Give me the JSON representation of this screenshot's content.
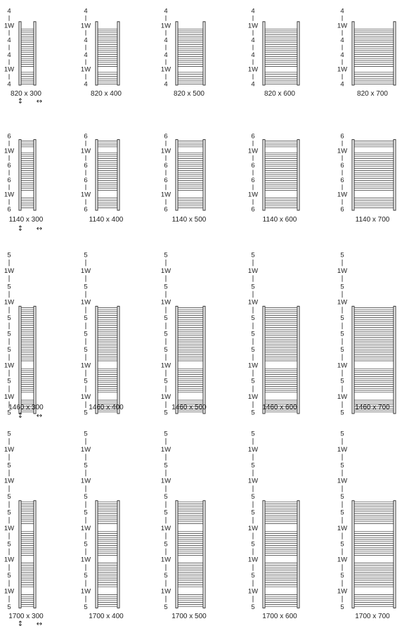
{
  "rows": [
    {
      "label_sequence": [
        "4",
        "1W",
        "4",
        "4",
        "1W",
        "4"
      ],
      "radiators": [
        {
          "size_label": "820 x 300",
          "height_icon": "↕",
          "width_icon": "↔",
          "height_icon_name": "vertical-arrow-icon",
          "width_icon_name": "horizontal-arrow-icon"
        },
        {
          "size_label": "820 x 400"
        },
        {
          "size_label": "820 x 500"
        },
        {
          "size_label": "820 x 600"
        },
        {
          "size_label": "820 x 700"
        }
      ]
    },
    {
      "label_sequence": [
        "6",
        "1W",
        "6",
        "6",
        "1W",
        "6"
      ],
      "radiators": [
        {
          "size_label": "1140 x 300",
          "height_icon": "↕",
          "width_icon": "↔",
          "height_icon_name": "vertical-arrow-icon",
          "width_icon_name": "horizontal-arrow-icon"
        },
        {
          "size_label": "1140 x 400"
        },
        {
          "size_label": "1140 x 500"
        },
        {
          "size_label": "1140 x 600"
        },
        {
          "size_label": "1140 x 700"
        }
      ]
    },
    {
      "label_sequence": [
        "5",
        "1W",
        "5",
        "1W",
        "5",
        "5",
        "5",
        "1W",
        "5",
        "1W",
        "5"
      ],
      "radiators": [
        {
          "size_label": "1460 x 300",
          "height_icon": "↕",
          "width_icon": "↔",
          "height_icon_name": "vertical-arrow-icon",
          "width_icon_name": "horizontal-arrow-icon"
        },
        {
          "size_label": "1460 x 400"
        },
        {
          "size_label": "1460 x 500"
        },
        {
          "size_label": "1460 x 600"
        },
        {
          "size_label": "1460 x 700"
        }
      ]
    },
    {
      "label_sequence": [
        "5",
        "1W",
        "5",
        "1W",
        "5",
        "5",
        "1W",
        "5",
        "1W",
        "5",
        "1W",
        "5"
      ],
      "radiators": [
        {
          "size_label": "1700 x 300",
          "height_icon": "↕",
          "width_icon": "↔",
          "height_icon_name": "vertical-arrow-icon",
          "width_icon_name": "horizontal-arrow-icon"
        },
        {
          "size_label": "1700 x 400"
        },
        {
          "size_label": "1700 x 500"
        },
        {
          "size_label": "1700 x 600"
        },
        {
          "size_label": "1700 x 700"
        }
      ]
    }
  ]
}
